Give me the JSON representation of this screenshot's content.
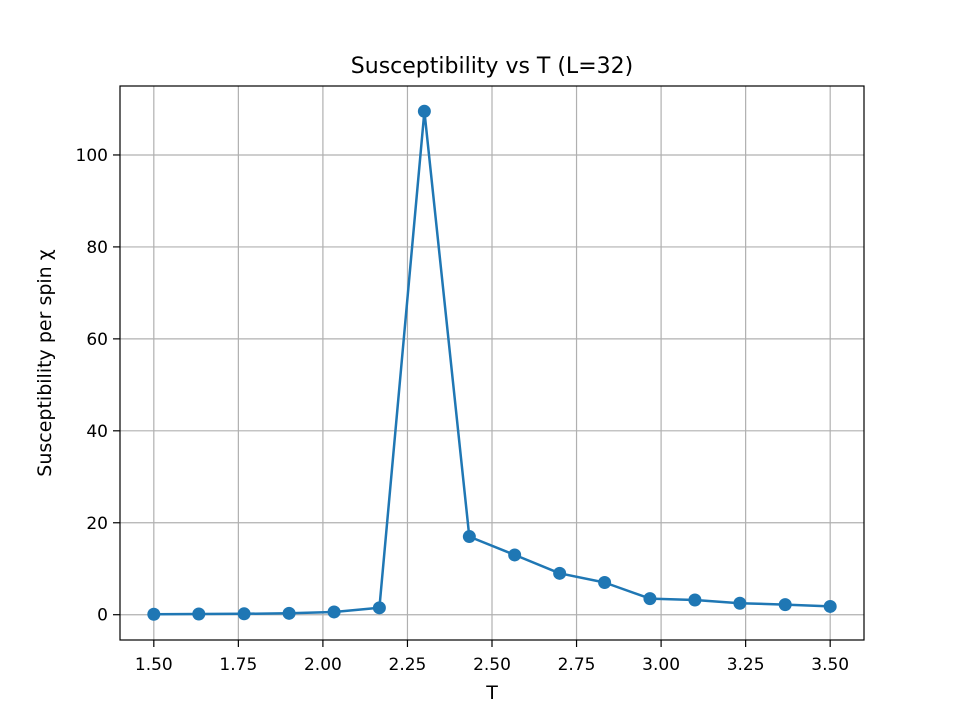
{
  "chart_data": {
    "type": "line",
    "title": "Susceptibility vs T (L=32)",
    "xlabel": "T",
    "ylabel": "Susceptibility per spin χ",
    "xlim": [
      1.4,
      3.6
    ],
    "ylim": [
      -5.5,
      115
    ],
    "xticks": [
      1.5,
      1.75,
      2.0,
      2.25,
      2.5,
      2.75,
      3.0,
      3.25,
      3.5
    ],
    "xtick_labels": [
      "1.50",
      "1.75",
      "2.00",
      "2.25",
      "2.50",
      "2.75",
      "3.00",
      "3.25",
      "3.50"
    ],
    "yticks": [
      0,
      20,
      40,
      60,
      80,
      100
    ],
    "ytick_labels": [
      "0",
      "20",
      "40",
      "60",
      "80",
      "100"
    ],
    "grid": true,
    "line_color": "#1f77b4",
    "series": [
      {
        "x": [
          1.5,
          1.633,
          1.767,
          1.9,
          2.033,
          2.167,
          2.3,
          2.433,
          2.567,
          2.7,
          2.833,
          2.967,
          3.1,
          3.233,
          3.367,
          3.5
        ],
        "y": [
          0.1,
          0.15,
          0.2,
          0.3,
          0.6,
          1.5,
          109.5,
          17.0,
          13.0,
          9.0,
          7.0,
          3.5,
          3.2,
          2.5,
          2.2,
          1.8
        ]
      }
    ]
  }
}
